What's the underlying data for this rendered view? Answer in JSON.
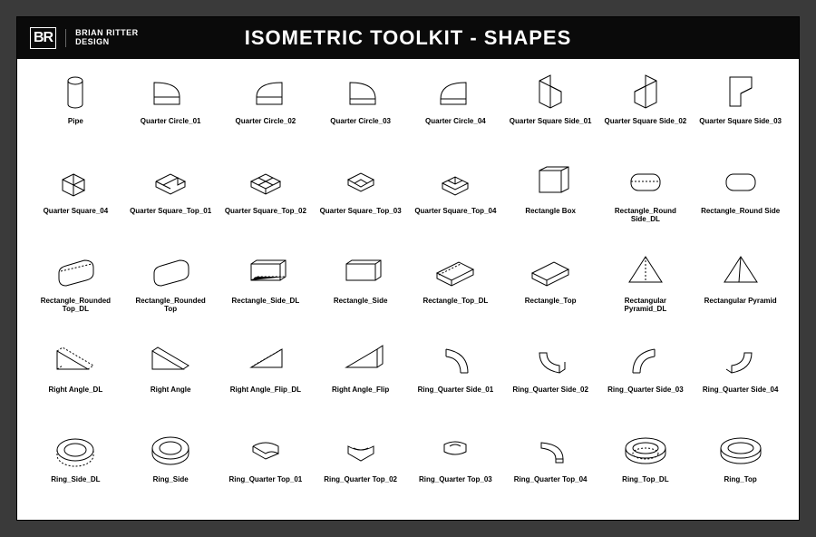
{
  "header": {
    "logo_mark": "BR",
    "logo_line1": "BRIAN RITTER",
    "logo_line2": "DESIGN",
    "title": "ISOMETRIC TOOLKIT - SHAPES"
  },
  "style": {
    "bg_outer": "#3a3a3a",
    "bg_panel": "#ffffff",
    "bg_header": "#0a0a0a",
    "text_header": "#ffffff",
    "text_label": "#000000",
    "stroke": "#000000",
    "stroke_width": 1,
    "label_fontsize": 8,
    "title_fontsize": 22,
    "grid_cols": 8,
    "grid_rows": 5
  },
  "shapes": [
    {
      "id": "pipe",
      "label": "Pipe"
    },
    {
      "id": "qc01",
      "label": "Quarter Circle_01"
    },
    {
      "id": "qc02",
      "label": "Quarter Circle_02"
    },
    {
      "id": "qc03",
      "label": "Quarter Circle_03"
    },
    {
      "id": "qc04",
      "label": "Quarter Circle_04"
    },
    {
      "id": "qss01",
      "label": "Quarter Square Side_01"
    },
    {
      "id": "qss02",
      "label": "Quarter Square Side_02"
    },
    {
      "id": "qss03",
      "label": "Quarter Square Side_03"
    },
    {
      "id": "qs04",
      "label": "Quarter Square_04"
    },
    {
      "id": "qst01",
      "label": "Quarter Square_Top_01"
    },
    {
      "id": "qst02",
      "label": "Quarter Square_Top_02"
    },
    {
      "id": "qst03",
      "label": "Quarter Square_Top_03"
    },
    {
      "id": "qst04",
      "label": "Quarter Square_Top_04"
    },
    {
      "id": "rectbox",
      "label": "Rectangle Box"
    },
    {
      "id": "rrsd",
      "label": "Rectangle_Round Side_DL"
    },
    {
      "id": "rrs",
      "label": "Rectangle_Round Side"
    },
    {
      "id": "rrtd",
      "label": "Rectangle_Rounded Top_DL"
    },
    {
      "id": "rrt",
      "label": "Rectangle_Rounded Top"
    },
    {
      "id": "rsd",
      "label": "Rectangle_Side_DL"
    },
    {
      "id": "rs",
      "label": "Rectangle_Side"
    },
    {
      "id": "rtd",
      "label": "Rectangle_Top_DL"
    },
    {
      "id": "rt",
      "label": "Rectangle_Top"
    },
    {
      "id": "rpyd",
      "label": "Rectangular Pyramid_DL"
    },
    {
      "id": "rpy",
      "label": "Rectangular Pyramid"
    },
    {
      "id": "rad",
      "label": "Right Angle_DL"
    },
    {
      "id": "ra",
      "label": "Right Angle"
    },
    {
      "id": "rafd",
      "label": "Right Angle_Flip_DL"
    },
    {
      "id": "raf",
      "label": "Right Angle_Flip"
    },
    {
      "id": "rqs1",
      "label": "Ring_Quarter Side_01"
    },
    {
      "id": "rqs2",
      "label": "Ring_Quarter Side_02"
    },
    {
      "id": "rqs3",
      "label": "Ring_Quarter Side_03"
    },
    {
      "id": "rqs4",
      "label": "Ring_Quarter Side_04"
    },
    {
      "id": "ringsd",
      "label": "Ring_Side_DL"
    },
    {
      "id": "rings",
      "label": "Ring_Side"
    },
    {
      "id": "rqt1",
      "label": "Ring_Quarter Top_01"
    },
    {
      "id": "rqt2",
      "label": "Ring_Quarter Top_02"
    },
    {
      "id": "rqt3",
      "label": "Ring_Quarter Top_03"
    },
    {
      "id": "rqt4",
      "label": "Ring_Quarter Top_04"
    },
    {
      "id": "ringtd",
      "label": "Ring_Top_DL"
    },
    {
      "id": "ringt",
      "label": "Ring_Top"
    }
  ]
}
